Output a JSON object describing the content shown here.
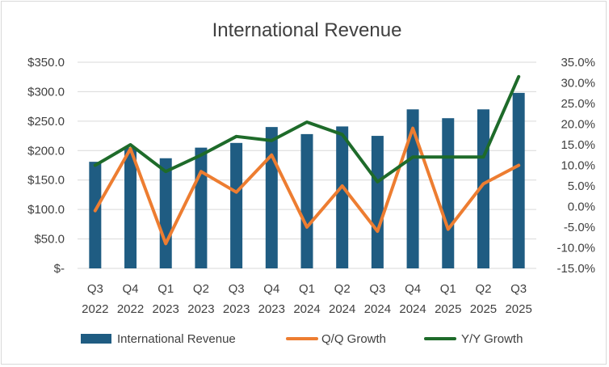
{
  "chart_data": {
    "type": "bar",
    "title": "International Revenue",
    "categories": [
      [
        "Q3",
        "2022"
      ],
      [
        "Q4",
        "2022"
      ],
      [
        "Q1",
        "2023"
      ],
      [
        "Q2",
        "2023"
      ],
      [
        "Q3",
        "2023"
      ],
      [
        "Q4",
        "2023"
      ],
      [
        "Q1",
        "2024"
      ],
      [
        "Q2",
        "2024"
      ],
      [
        "Q3",
        "2024"
      ],
      [
        "Q4",
        "2024"
      ],
      [
        "Q1",
        "2025"
      ],
      [
        "Q2",
        "2025"
      ],
      [
        "Q3",
        "2025"
      ]
    ],
    "series": [
      {
        "name": "International Revenue",
        "type": "bar",
        "axis": "left",
        "color": "#1f5c82",
        "values": [
          181,
          205,
          187,
          205,
          213,
          240,
          228,
          241,
          225,
          270,
          255,
          270,
          298
        ]
      },
      {
        "name": "Q/Q Growth",
        "type": "line",
        "axis": "right",
        "color": "#ed7d31",
        "values": [
          -1.0,
          14.0,
          -9.0,
          8.5,
          3.5,
          12.5,
          -5.0,
          5.0,
          -6.0,
          19.0,
          -5.5,
          5.5,
          10.0
        ]
      },
      {
        "name": "Y/Y Growth",
        "type": "line",
        "axis": "right",
        "color": "#1e6b2a",
        "values": [
          10.0,
          15.0,
          8.5,
          12.5,
          17.0,
          16.0,
          20.5,
          17.5,
          6.0,
          12.0,
          12.0,
          12.0,
          31.5
        ]
      }
    ],
    "y_left": {
      "min": 0,
      "max": 350,
      "ticks": [
        0,
        50,
        100,
        150,
        200,
        250,
        300,
        350
      ],
      "tick_labels": [
        "$-",
        "$50.0",
        "$100.0",
        "$150.0",
        "$200.0",
        "$250.0",
        "$300.0",
        "$350.0"
      ]
    },
    "y_right": {
      "min": -15,
      "max": 35,
      "ticks": [
        -15,
        -10,
        -5,
        0,
        5,
        10,
        15,
        20,
        25,
        30,
        35
      ],
      "tick_labels": [
        "-15.0%",
        "-10.0%",
        "-5.0%",
        "0.0%",
        "5.0%",
        "10.0%",
        "15.0%",
        "20.0%",
        "25.0%",
        "30.0%",
        "35.0%"
      ]
    },
    "gridlines": true,
    "legend": {
      "position": "bottom",
      "entries": [
        "International Revenue",
        "Q/Q Growth",
        "Y/Y Growth"
      ]
    },
    "colors": {
      "grid": "#d9d9d9",
      "text": "#404040"
    }
  }
}
